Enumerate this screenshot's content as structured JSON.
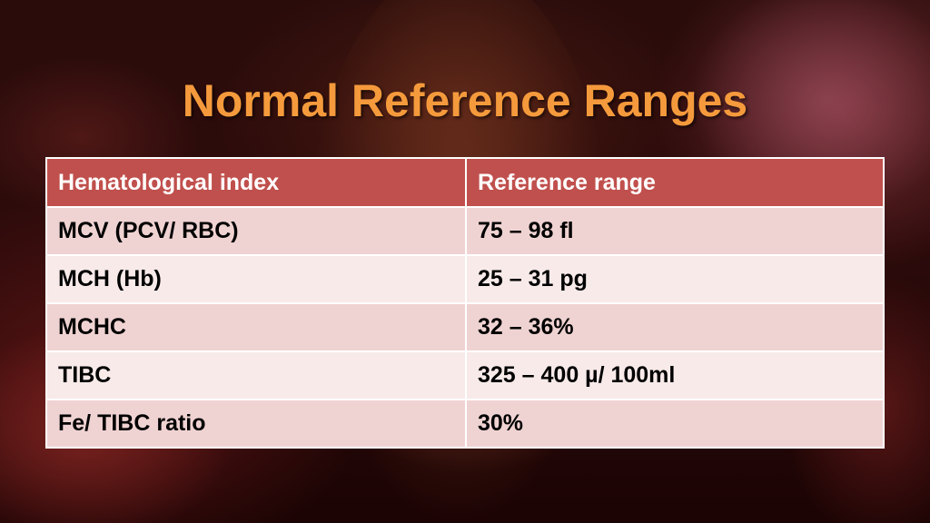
{
  "slide": {
    "title": "Normal Reference Ranges"
  },
  "table": {
    "headers": [
      "Hematological index",
      "Reference range"
    ],
    "rows": [
      {
        "index": "MCV (PCV/ RBC)",
        "range": "75 – 98 fl"
      },
      {
        "index": "MCH (Hb)",
        "range": "25 – 31 pg"
      },
      {
        "index": "MCHC",
        "range": "32 – 36%"
      },
      {
        "index": "TIBC",
        "range": "325 – 400 µ/ 100ml"
      },
      {
        "index": "Fe/ TIBC ratio",
        "range": "30%"
      }
    ]
  },
  "colors": {
    "title": "#f59a3c",
    "header_bg": "#c0504d",
    "row_odd_bg": "#efd3d2",
    "row_even_bg": "#f7eae9"
  }
}
